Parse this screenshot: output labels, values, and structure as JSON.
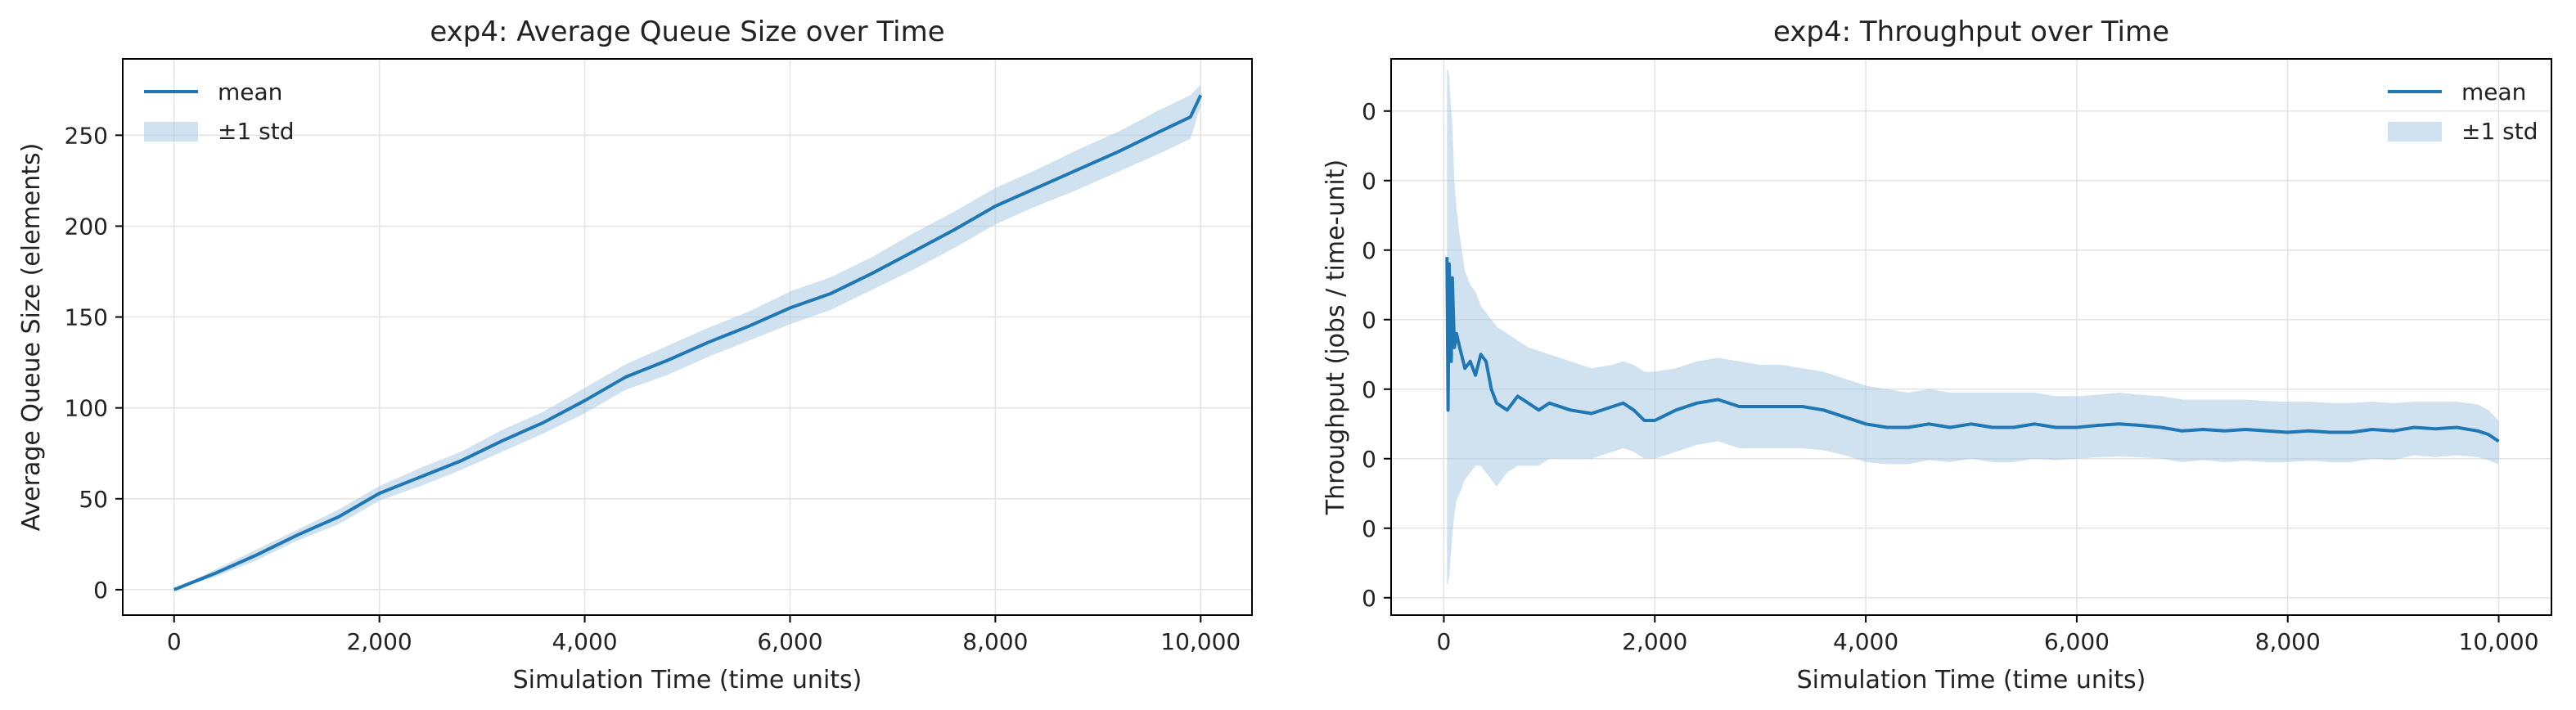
{
  "chart_data": [
    {
      "type": "line",
      "title": "exp4: Average Queue Size over Time",
      "xlabel": "Simulation Time (time units)",
      "ylabel": "Average Queue Size (elements)",
      "xlim": [
        -500,
        10500
      ],
      "ylim": [
        -14,
        292
      ],
      "xticks": [
        0,
        2000,
        4000,
        6000,
        8000,
        10000
      ],
      "xtick_labels": [
        "0",
        "2,000",
        "4,000",
        "6,000",
        "8,000",
        "10,000"
      ],
      "yticks": [
        0,
        50,
        100,
        150,
        200,
        250
      ],
      "ytick_labels": [
        "0",
        "50",
        "100",
        "150",
        "200",
        "250"
      ],
      "grid": true,
      "legend": {
        "position": "upper-left",
        "entries": [
          "mean",
          "±1 std"
        ]
      },
      "colors": {
        "line": "#1f77b4",
        "band": "#a9c9e4"
      },
      "series": [
        {
          "name": "mean",
          "x": [
            0,
            400,
            800,
            1200,
            1600,
            2000,
            2400,
            2800,
            3200,
            3600,
            4000,
            4400,
            4800,
            5200,
            5600,
            6000,
            6400,
            6800,
            7200,
            7600,
            8000,
            8400,
            8800,
            9200,
            9600,
            9900,
            10000
          ],
          "y": [
            0,
            9,
            19,
            30,
            40,
            53,
            62,
            71,
            82,
            92,
            104,
            117,
            126,
            136,
            145,
            155,
            163,
            174,
            186,
            198,
            211,
            221,
            231,
            241,
            252,
            260,
            272
          ],
          "std": [
            0,
            2,
            3,
            3,
            4,
            4,
            5,
            5,
            6,
            6,
            7,
            7,
            8,
            8,
            8,
            9,
            9,
            9,
            10,
            10,
            10,
            10,
            11,
            11,
            12,
            12,
            6
          ]
        }
      ]
    },
    {
      "type": "line",
      "title": "exp4: Throughput over Time",
      "xlabel": "Simulation Time (time units)",
      "ylabel": "Throughput (jobs / time-unit)",
      "xlim": [
        -500,
        10500
      ],
      "ylim": [
        -0.25,
        7.75
      ],
      "xticks": [
        0,
        2000,
        4000,
        6000,
        8000,
        10000
      ],
      "xtick_labels": [
        "0",
        "2,000",
        "4,000",
        "6,000",
        "8,000",
        "10,000"
      ],
      "yticks": [
        0,
        1,
        2,
        3,
        4,
        5,
        6,
        7
      ],
      "ytick_labels": [
        "0",
        "0",
        "0",
        "0",
        "0",
        "0",
        "0",
        "0"
      ],
      "grid": true,
      "legend": {
        "position": "upper-right",
        "entries": [
          "mean",
          "±1 std"
        ]
      },
      "colors": {
        "line": "#1f77b4",
        "band": "#a9c9e4"
      },
      "series": [
        {
          "name": "mean",
          "x": [
            30,
            40,
            50,
            60,
            70,
            80,
            100,
            120,
            150,
            200,
            250,
            300,
            350,
            400,
            450,
            500,
            600,
            700,
            800,
            900,
            1000,
            1200,
            1400,
            1600,
            1700,
            1800,
            1900,
            2000,
            2200,
            2400,
            2600,
            2800,
            3000,
            3200,
            3400,
            3600,
            3800,
            4000,
            4200,
            4400,
            4600,
            4800,
            5000,
            5200,
            5400,
            5600,
            5800,
            6000,
            6200,
            6400,
            6600,
            6800,
            7000,
            7200,
            7400,
            7600,
            7800,
            8000,
            8200,
            8400,
            8600,
            8800,
            9000,
            9200,
            9400,
            9600,
            9800,
            9900,
            10000
          ],
          "y": [
            4.9,
            2.7,
            4.8,
            4.2,
            3.4,
            4.6,
            3.6,
            3.8,
            3.6,
            3.3,
            3.4,
            3.2,
            3.5,
            3.4,
            3.0,
            2.8,
            2.7,
            2.9,
            2.8,
            2.7,
            2.8,
            2.7,
            2.65,
            2.75,
            2.8,
            2.7,
            2.55,
            2.55,
            2.7,
            2.8,
            2.85,
            2.75,
            2.75,
            2.75,
            2.75,
            2.7,
            2.6,
            2.5,
            2.45,
            2.45,
            2.5,
            2.45,
            2.5,
            2.45,
            2.45,
            2.5,
            2.45,
            2.45,
            2.48,
            2.5,
            2.48,
            2.45,
            2.4,
            2.42,
            2.4,
            2.42,
            2.4,
            2.38,
            2.4,
            2.38,
            2.38,
            2.42,
            2.4,
            2.45,
            2.43,
            2.45,
            2.4,
            2.35,
            2.25
          ],
          "upper": [
            7.6,
            7.6,
            7.5,
            7.2,
            7.0,
            6.8,
            6.0,
            5.6,
            5.2,
            4.7,
            4.5,
            4.4,
            4.2,
            4.1,
            4.0,
            3.9,
            3.8,
            3.7,
            3.6,
            3.55,
            3.5,
            3.4,
            3.3,
            3.35,
            3.4,
            3.35,
            3.25,
            3.25,
            3.3,
            3.4,
            3.45,
            3.4,
            3.35,
            3.35,
            3.3,
            3.25,
            3.15,
            3.05,
            3.0,
            2.95,
            3.0,
            2.95,
            2.95,
            2.95,
            2.95,
            2.95,
            2.9,
            2.9,
            2.92,
            2.95,
            2.92,
            2.9,
            2.85,
            2.85,
            2.85,
            2.85,
            2.83,
            2.82,
            2.82,
            2.8,
            2.8,
            2.82,
            2.8,
            2.82,
            2.82,
            2.82,
            2.78,
            2.7,
            2.55
          ],
          "lower": [
            0.2,
            0.2,
            0.3,
            0.5,
            0.7,
            0.9,
            1.2,
            1.4,
            1.5,
            1.7,
            1.8,
            1.9,
            1.9,
            1.8,
            1.7,
            1.6,
            1.8,
            1.9,
            1.9,
            1.9,
            2.0,
            2.0,
            2.0,
            2.1,
            2.15,
            2.1,
            2.0,
            2.0,
            2.1,
            2.2,
            2.25,
            2.15,
            2.15,
            2.15,
            2.15,
            2.12,
            2.05,
            1.95,
            1.92,
            1.92,
            1.98,
            1.95,
            2.0,
            1.95,
            1.95,
            2.0,
            1.98,
            2.0,
            2.02,
            2.03,
            2.02,
            2.0,
            1.95,
            1.98,
            1.95,
            1.97,
            1.95,
            1.95,
            1.97,
            1.95,
            1.95,
            2.0,
            1.98,
            2.05,
            2.02,
            2.05,
            2.02,
            1.98,
            1.92
          ]
        }
      ]
    }
  ]
}
